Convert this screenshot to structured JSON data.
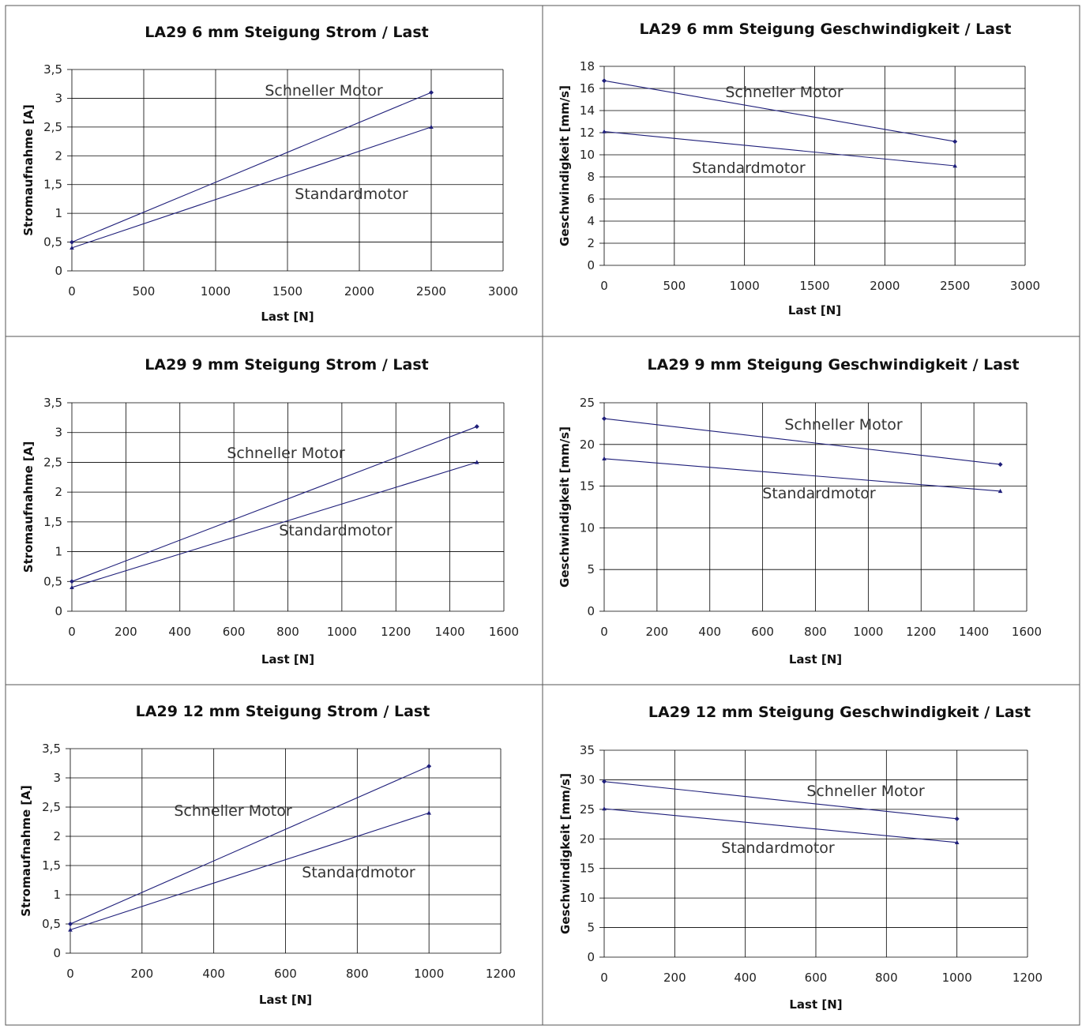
{
  "colors": {
    "series": "#1f1f7a",
    "grid": "#000000",
    "cell_border": "#555555"
  },
  "chart_data": [
    {
      "type": "line",
      "title": "LA29 6 mm Steigung Strom / Last",
      "xlabel": "Last [N]",
      "ylabel": "Stromaufnahme [A]",
      "xlim": [
        0,
        3000
      ],
      "ylim": [
        0,
        3.5
      ],
      "x_ticks": [
        "0",
        "500",
        "1000",
        "1500",
        "2000",
        "2500",
        "3000"
      ],
      "y_ticks": [
        "0",
        "0,5",
        "1",
        "1,5",
        "2",
        "2,5",
        "3",
        "3,5"
      ],
      "grid": true,
      "series": [
        {
          "name": "Schneller Motor",
          "marker": "diamond",
          "x": [
            0,
            2500
          ],
          "values": [
            0.5,
            3.1
          ]
        },
        {
          "name": "Standardmotor",
          "marker": "triangle",
          "x": [
            0,
            2500
          ],
          "values": [
            0.4,
            2.5
          ]
        }
      ]
    },
    {
      "type": "line",
      "title": "LA29 6 mm Steigung Geschwindigkeit / Last",
      "xlabel": "Last [N]",
      "ylabel": "Geschwindigkeit [mm/s]",
      "xlim": [
        0,
        3000
      ],
      "ylim": [
        0,
        18
      ],
      "x_ticks": [
        "0",
        "500",
        "1000",
        "1500",
        "2000",
        "2500",
        "3000"
      ],
      "y_ticks": [
        "0",
        "2",
        "4",
        "6",
        "8",
        "10",
        "12",
        "14",
        "16",
        "18"
      ],
      "grid": true,
      "series": [
        {
          "name": "Schneller Motor",
          "marker": "diamond",
          "x": [
            0,
            2500
          ],
          "values": [
            16.7,
            11.2
          ]
        },
        {
          "name": "Standardmotor",
          "marker": "triangle",
          "x": [
            0,
            2500
          ],
          "values": [
            12.1,
            9.0
          ]
        }
      ]
    },
    {
      "type": "line",
      "title": "LA29 9 mm Steigung Strom / Last",
      "xlabel": "Last [N]",
      "ylabel": "Stromaufnahme [A]",
      "xlim": [
        0,
        1600
      ],
      "ylim": [
        0,
        3.5
      ],
      "x_ticks": [
        "0",
        "200",
        "400",
        "600",
        "800",
        "1000",
        "1200",
        "1400",
        "1600"
      ],
      "y_ticks": [
        "0",
        "0,5",
        "1",
        "1,5",
        "2",
        "2,5",
        "3",
        "3,5"
      ],
      "grid": true,
      "series": [
        {
          "name": "Schneller Motor",
          "marker": "diamond",
          "x": [
            0,
            1500
          ],
          "values": [
            0.5,
            3.1
          ]
        },
        {
          "name": "Standardmotor",
          "marker": "triangle",
          "x": [
            0,
            1500
          ],
          "values": [
            0.4,
            2.5
          ]
        }
      ]
    },
    {
      "type": "line",
      "title": "LA29 9 mm Steigung Geschwindigkeit / Last",
      "xlabel": "Last [N]",
      "ylabel": "Geschwindigkeit [mm/s]",
      "xlim": [
        0,
        1600
      ],
      "ylim": [
        0,
        25
      ],
      "x_ticks": [
        "0",
        "200",
        "400",
        "600",
        "800",
        "1000",
        "1200",
        "1400",
        "1600"
      ],
      "y_ticks": [
        "0",
        "5",
        "10",
        "15",
        "20",
        "25"
      ],
      "grid": true,
      "series": [
        {
          "name": "Schneller Motor",
          "marker": "diamond",
          "x": [
            0,
            1500
          ],
          "values": [
            23.1,
            17.6
          ]
        },
        {
          "name": "Standardmotor",
          "marker": "triangle",
          "x": [
            0,
            1500
          ],
          "values": [
            18.3,
            14.4
          ]
        }
      ]
    },
    {
      "type": "line",
      "title": "LA29 12 mm Steigung Strom / Last",
      "xlabel": "Last [N]",
      "ylabel": "Stromaufnahme [A]",
      "xlim": [
        0,
        1200
      ],
      "ylim": [
        0,
        3.5
      ],
      "x_ticks": [
        "0",
        "200",
        "400",
        "600",
        "800",
        "1000",
        "1200"
      ],
      "y_ticks": [
        "0",
        "0,5",
        "1",
        "1,5",
        "2",
        "2,5",
        "3",
        "3,5"
      ],
      "grid": true,
      "series": [
        {
          "name": "Schneller Motor",
          "marker": "diamond",
          "x": [
            0,
            1000
          ],
          "values": [
            0.5,
            3.2
          ]
        },
        {
          "name": "Standardmotor",
          "marker": "triangle",
          "x": [
            0,
            1000
          ],
          "values": [
            0.4,
            2.4
          ]
        }
      ]
    },
    {
      "type": "line",
      "title": "LA29 12 mm Steigung Geschwindigkeit / Last",
      "xlabel": "Last [N]",
      "ylabel": "Geschwindigkeit [mm/s]",
      "xlim": [
        0,
        1200
      ],
      "ylim": [
        0,
        35
      ],
      "x_ticks": [
        "0",
        "200",
        "400",
        "600",
        "800",
        "1000",
        "1200"
      ],
      "y_ticks": [
        "0",
        "5",
        "10",
        "15",
        "20",
        "25",
        "30",
        "35"
      ],
      "grid": true,
      "series": [
        {
          "name": "Schneller Motor",
          "marker": "diamond",
          "x": [
            0,
            1000
          ],
          "values": [
            29.7,
            23.4
          ]
        },
        {
          "name": "Standardmotor",
          "marker": "triangle",
          "x": [
            0,
            1000
          ],
          "values": [
            25.1,
            19.4
          ]
        }
      ]
    }
  ]
}
